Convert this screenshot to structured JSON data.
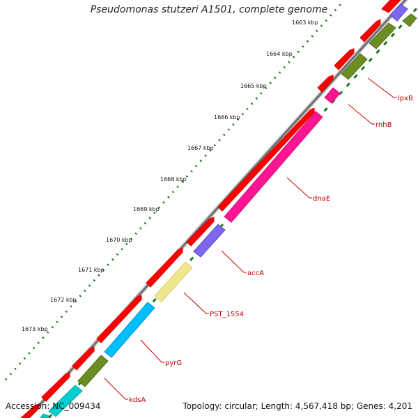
{
  "title": "Pseudomonas stutzeri A1501, complete genome",
  "footer": {
    "accession_label": "Accession:",
    "accession": "NC_009434",
    "topology": "Topology: circular; Length: 4,567,418 bp; Genes: 4,201"
  },
  "scale_labels": [
    "1663 kbp",
    "1664 kbp",
    "1665 kbp",
    "1666 kbp",
    "1667 kbp",
    "1668 kbp",
    "1669 kbp",
    "1670 kbp",
    "1671 kbp",
    "1672 kbp",
    "1673 kbp"
  ],
  "gene_labels": [
    "lpxB",
    "rnhB",
    "dnaE",
    "accA",
    "PST_1554",
    "pyrG",
    "kdsA"
  ],
  "colors": {
    "backbone": "#888888",
    "cds": "#ff0000",
    "olive": "#6b8e23",
    "purple": "#7b68ee",
    "magenta": "#ff1493",
    "khaki": "#f0e68c",
    "cyan": "#00bfff",
    "tick": "#1a7a1a",
    "label": "#cc0000"
  }
}
